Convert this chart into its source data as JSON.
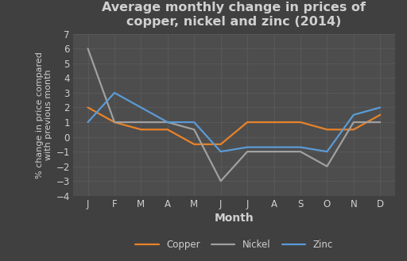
{
  "title": "Average monthly change in prices of\ncopper, nickel and zinc (2014)",
  "xlabel": "Month",
  "ylabel": "% change in price compared\nwith previous month",
  "months": [
    "J",
    "F",
    "M",
    "A",
    "M",
    "J",
    "J",
    "A",
    "S",
    "O",
    "N",
    "D"
  ],
  "copper": [
    2.0,
    1.0,
    0.5,
    0.5,
    -0.5,
    -0.5,
    1.0,
    1.0,
    1.0,
    0.5,
    0.5,
    1.5
  ],
  "nickel": [
    6.0,
    1.0,
    1.0,
    1.0,
    0.5,
    -3.0,
    -1.0,
    -1.0,
    -1.0,
    -2.0,
    1.0,
    1.0
  ],
  "zinc": [
    1.0,
    3.0,
    2.0,
    1.0,
    1.0,
    -1.0,
    -0.7,
    -0.7,
    -0.7,
    -1.0,
    1.5,
    2.0
  ],
  "copper_color": "#E8822A",
  "nickel_color": "#A0A0A0",
  "zinc_color": "#5B9BD5",
  "background_color": "#404040",
  "plot_bg_color": "#4D4D4D",
  "text_color": "#D0D0D0",
  "grid_color": "#606060",
  "ylim": [
    -4,
    7
  ],
  "yticks": [
    -4,
    -3,
    -2,
    -1,
    0,
    1,
    2,
    3,
    4,
    5,
    6,
    7
  ],
  "linewidth": 1.6,
  "title_fontsize": 11.5,
  "xlabel_fontsize": 10,
  "ylabel_fontsize": 8,
  "tick_fontsize": 8.5,
  "legend_fontsize": 8.5
}
